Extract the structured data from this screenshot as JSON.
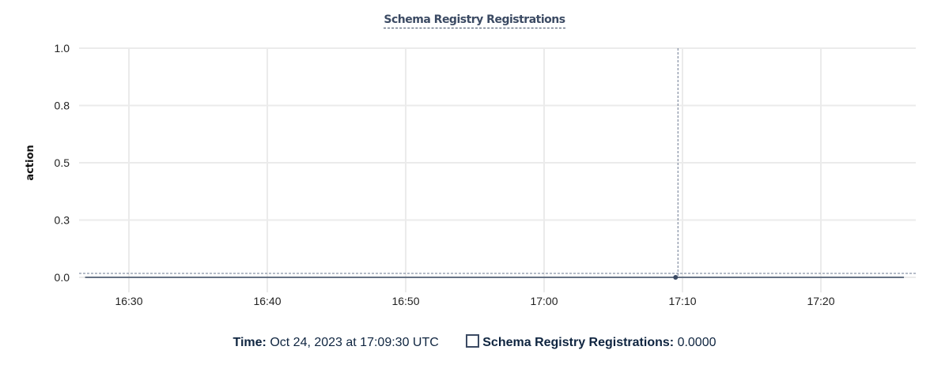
{
  "chart_data": {
    "type": "line",
    "title": "Schema Registry Registrations",
    "ylabel": "action",
    "xlabel": "",
    "ylim": [
      0,
      1
    ],
    "y_ticks": [
      0,
      0.25,
      0.5,
      0.75,
      1.0
    ],
    "y_tick_labels": [
      "0.0",
      "0.3",
      "0.5",
      "0.8",
      "1.0"
    ],
    "x_ticks": [
      "16:30",
      "16:40",
      "16:50",
      "17:00",
      "17:10",
      "17:20"
    ],
    "xlim": [
      "16:26:25",
      "17:27:00"
    ],
    "grid": true,
    "series": [
      {
        "name": "Schema Registry Registrations",
        "color": "#3b4a63",
        "x": [
          "16:26:50",
          "17:09:30",
          "17:26:00"
        ],
        "values": [
          0,
          0,
          0
        ]
      }
    ],
    "hover": {
      "x": "17:09:30",
      "value": 0
    }
  },
  "footer": {
    "time_label": "Time:",
    "time_value": "Oct 24, 2023 at 17:09:30 UTC",
    "series_label": "Schema Registry Registrations:",
    "series_value": "0.0000"
  }
}
